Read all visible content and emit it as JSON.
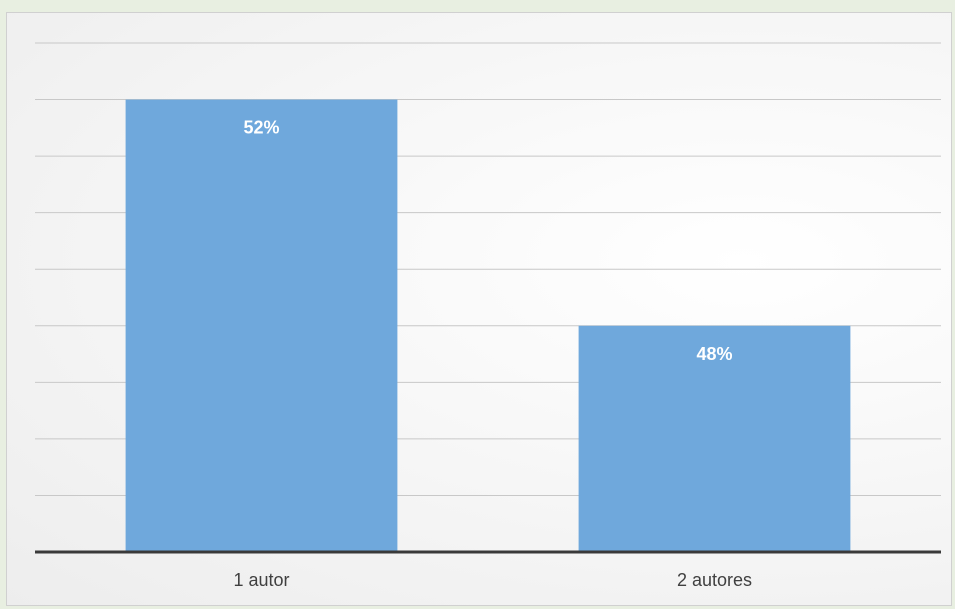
{
  "chart_data": {
    "type": "bar",
    "categories": [
      "1 autor",
      "2 autores"
    ],
    "values": [
      52,
      48
    ],
    "data_labels": [
      "52%",
      "48%"
    ],
    "ylim": [
      44,
      53
    ],
    "title": "",
    "xlabel": "",
    "ylabel": "",
    "grid": true,
    "legend": "none",
    "bar_color": "#6fa8dc",
    "axis_color": "#3a3a3a",
    "grid_color": "#c8c8c8"
  }
}
